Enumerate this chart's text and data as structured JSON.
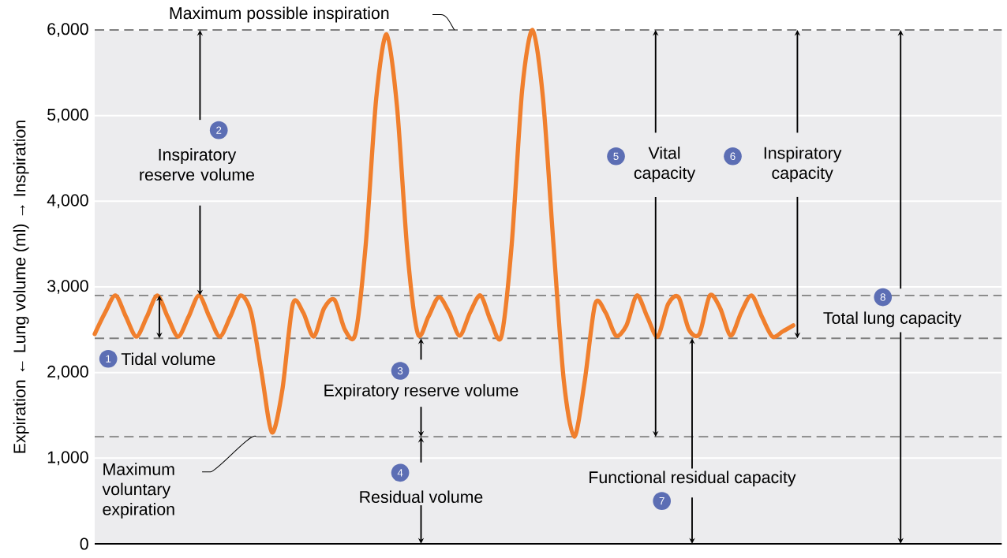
{
  "chart_data": {
    "type": "line",
    "ylabel": "Expiration ← Lung volume (ml) → Inspiration",
    "categories": [
      null,
      null,
      null,
      null,
      null,
      null,
      null,
      null,
      null,
      null,
      null,
      null,
      null,
      null,
      null,
      null,
      null,
      null,
      null,
      null,
      null,
      null,
      null,
      null,
      null,
      null,
      null,
      null,
      null,
      null,
      null,
      null,
      null,
      null,
      null,
      null,
      null,
      null,
      null,
      null,
      null,
      null,
      null,
      null,
      null,
      null,
      null,
      null,
      null,
      null,
      null,
      null,
      null,
      null,
      null,
      null,
      null,
      null,
      null,
      null,
      null,
      null,
      null,
      null,
      null,
      null,
      null,
      null,
      null,
      null,
      null,
      null,
      null,
      null,
      null,
      null,
      null,
      null,
      null,
      null,
      null,
      null,
      null,
      null,
      null,
      null,
      null,
      null
    ],
    "series": [
      {
        "color": "#f07f2d",
        "values": [
          2450,
          2700,
          2900,
          2650,
          2420,
          2650,
          2900,
          2650,
          2420,
          2650,
          2900,
          2650,
          2420,
          2650,
          2900,
          2700,
          2000,
          1300,
          1800,
          2800,
          2700,
          2420,
          2750,
          2850,
          2500,
          2450,
          3500,
          5200,
          5950,
          5100,
          3400,
          2450,
          2650,
          2880,
          2700,
          2430,
          2700,
          2900,
          2600,
          2420,
          3500,
          5300,
          6000,
          5200,
          3500,
          1900,
          1250,
          1900,
          2800,
          2700,
          2430,
          2550,
          2900,
          2650,
          2420,
          2800,
          2880,
          2500,
          2450,
          2900,
          2750,
          2430,
          2700,
          2900,
          2650,
          2420,
          2480,
          2550,
          null,
          null,
          null,
          null,
          null,
          null,
          null,
          null,
          null,
          null,
          null,
          null,
          null,
          null,
          null,
          null,
          null,
          null,
          null,
          null
        ]
      }
    ],
    "ylim": [
      0,
      6000
    ],
    "yticks": [
      0,
      {
        "value": 1000,
        "label": "1,000"
      },
      {
        "value": 2000,
        "label": "2,000"
      },
      {
        "value": 3000,
        "label": "3,000"
      },
      {
        "value": 4000,
        "label": "4,000"
      },
      {
        "value": 5000,
        "label": "5,000"
      },
      {
        "value": 6000,
        "label": "6,000"
      }
    ],
    "grid": "y",
    "ref_lines": [
      {
        "axis": "y",
        "value": 6000,
        "label": "Maximum possible inspiration",
        "color": "#808080",
        "line_style": "dashed"
      },
      {
        "axis": "y",
        "value": 2900,
        "color": "#808080",
        "line_style": "dashed"
      },
      {
        "axis": "y",
        "value": 2400,
        "color": "#808080",
        "line_style": "dashed"
      },
      {
        "axis": "y",
        "value": 1250,
        "label": "Maximum voluntary expiration",
        "color": "#808080",
        "line_style": "dashed"
      }
    ],
    "annotations": [
      "1",
      "Tidal volume",
      "2",
      "Inspiratory reserve volume",
      "3",
      "Expiratory reserve volume",
      "4",
      "Residual volume",
      "5",
      "Vital capacity",
      "6",
      "Inspiratory capacity",
      "7",
      "Functional residual capacity",
      "8",
      "Total lung capacity"
    ]
  }
}
